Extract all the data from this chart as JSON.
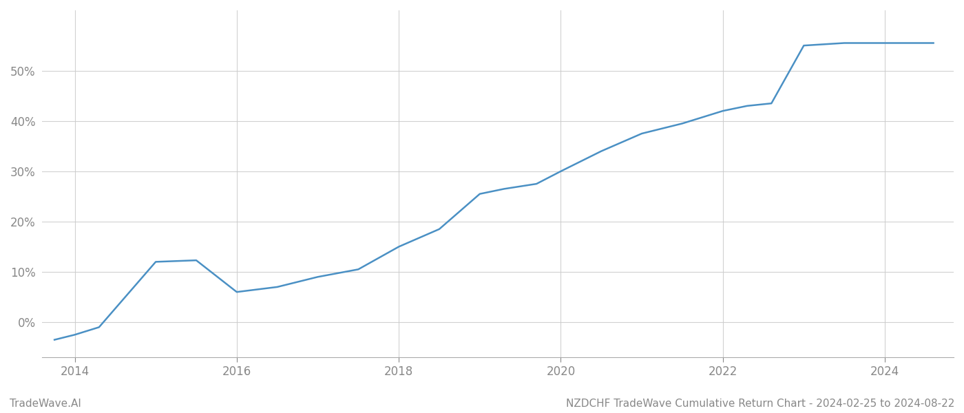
{
  "title": "NZDCHF TradeWave Cumulative Return Chart - 2024-02-25 to 2024-08-22",
  "watermark": "TradeWave.AI",
  "line_color": "#4a90c4",
  "background_color": "#ffffff",
  "grid_color": "#cccccc",
  "x_values": [
    2013.75,
    2014.0,
    2014.3,
    2015.0,
    2015.5,
    2016.0,
    2016.5,
    2017.0,
    2017.5,
    2018.0,
    2018.5,
    2019.0,
    2019.3,
    2019.7,
    2020.0,
    2020.5,
    2021.0,
    2021.5,
    2022.0,
    2022.3,
    2022.6,
    2023.0,
    2023.5,
    2024.0,
    2024.6
  ],
  "y_values": [
    -3.5,
    -2.5,
    -1.0,
    12.0,
    12.3,
    6.0,
    7.0,
    9.0,
    10.5,
    15.0,
    18.5,
    25.5,
    26.5,
    27.5,
    30.0,
    34.0,
    37.5,
    39.5,
    42.0,
    43.0,
    43.5,
    55.0,
    55.5,
    55.5,
    55.5
  ],
  "xlim": [
    2013.6,
    2024.85
  ],
  "ylim": [
    -7,
    62
  ],
  "yticks": [
    0,
    10,
    20,
    30,
    40,
    50
  ],
  "ytick_labels": [
    "0%",
    "10%",
    "20%",
    "30%",
    "40%",
    "50%"
  ],
  "xticks": [
    2014,
    2016,
    2018,
    2020,
    2022,
    2024
  ],
  "line_width": 1.8,
  "title_fontsize": 11,
  "tick_fontsize": 12,
  "watermark_fontsize": 11
}
